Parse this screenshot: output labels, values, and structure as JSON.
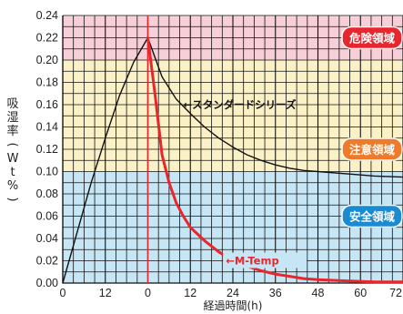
{
  "chart_data": {
    "type": "line",
    "title": "",
    "ylabel": "吸湿率(Wt%)",
    "xlabel": "経過時間(h)",
    "ylim": [
      0,
      0.24
    ],
    "y_ticks": [
      "0.00",
      "0.02",
      "0.04",
      "0.06",
      "0.08",
      "0.10",
      "0.12",
      "0.14",
      "0.16",
      "0.18",
      "0.20",
      "0.22",
      "0.24"
    ],
    "x_range": [
      -24,
      72
    ],
    "x_ticks": [
      "0",
      "12",
      "0",
      "12",
      "24",
      "36",
      "48",
      "60",
      "72"
    ],
    "zones": [
      {
        "label": "危険領域",
        "from": 0.2,
        "to": 0.24,
        "band_color": "#f7cfd8",
        "badge_color": "#e8262d"
      },
      {
        "label": "注意領域",
        "from": 0.1,
        "to": 0.2,
        "band_color": "#fbf1c6",
        "badge_color": "#ee7a2a"
      },
      {
        "label": "安全領域",
        "from": 0.0,
        "to": 0.1,
        "band_color": "#c6e6f5",
        "badge_color": "#1a8bd1"
      }
    ],
    "series": [
      {
        "name": "スタンダードシリーズ",
        "color": "#111111",
        "points": [
          [
            -24,
            0.0
          ],
          [
            -20,
            0.045
          ],
          [
            -16,
            0.09
          ],
          [
            -12,
            0.13
          ],
          [
            -8,
            0.168
          ],
          [
            -4,
            0.198
          ],
          [
            0,
            0.22
          ],
          [
            4,
            0.185
          ],
          [
            8,
            0.165
          ],
          [
            12,
            0.152
          ],
          [
            16,
            0.14
          ],
          [
            20,
            0.13
          ],
          [
            24,
            0.122
          ],
          [
            28,
            0.115
          ],
          [
            32,
            0.11
          ],
          [
            36,
            0.106
          ],
          [
            40,
            0.103
          ],
          [
            44,
            0.101
          ],
          [
            48,
            0.1
          ],
          [
            56,
            0.098
          ],
          [
            64,
            0.096
          ],
          [
            72,
            0.095
          ]
        ]
      },
      {
        "name": "M-Temp",
        "color": "#e8262d",
        "points": [
          [
            0,
            0.22
          ],
          [
            2,
            0.17
          ],
          [
            4,
            0.115
          ],
          [
            6,
            0.09
          ],
          [
            8,
            0.072
          ],
          [
            10,
            0.06
          ],
          [
            12,
            0.05
          ],
          [
            16,
            0.038
          ],
          [
            20,
            0.028
          ],
          [
            24,
            0.02
          ],
          [
            28,
            0.015
          ],
          [
            32,
            0.011
          ],
          [
            36,
            0.008
          ],
          [
            40,
            0.006
          ],
          [
            44,
            0.004
          ],
          [
            48,
            0.003
          ],
          [
            56,
            0.002
          ],
          [
            64,
            0.001
          ],
          [
            72,
            0.001
          ]
        ]
      }
    ],
    "vertical_marker": {
      "x": 0,
      "color": "#e8262d"
    },
    "annotations": [
      {
        "text": "←スタンダードシリーズ",
        "series": "スタンダードシリーズ"
      },
      {
        "text": "←M-Temp",
        "series": "M-Temp"
      }
    ],
    "grid": true
  }
}
